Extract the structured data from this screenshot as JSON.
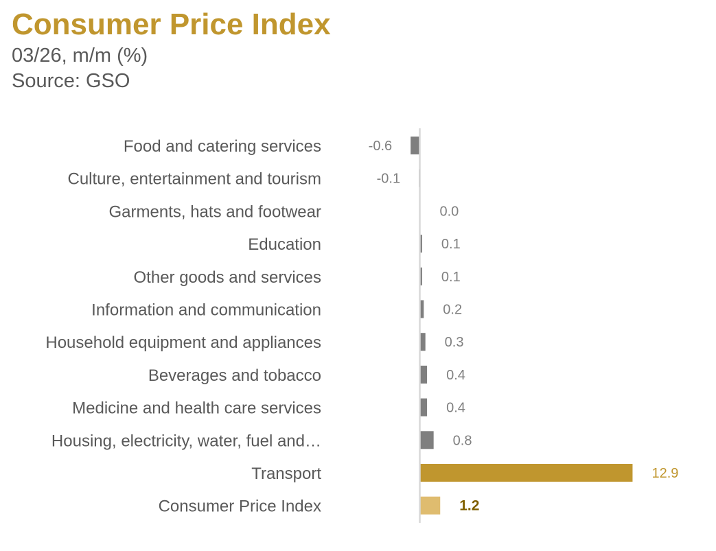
{
  "header": {
    "title": "Consumer Price Index",
    "subtitle": "03/26, m/m (%)",
    "source": "Source: GSO"
  },
  "colors": {
    "title": "#c0962e",
    "text": "#595959",
    "bar_default": "#7f7f7f",
    "bar_highlight": "#c0962e",
    "bar_total": "#dfbc6f",
    "label_highlight": "#c0962e",
    "label_total": "#7f5f00",
    "axis": "#d9d9d9"
  },
  "chart_data": {
    "type": "bar",
    "orientation": "horizontal",
    "title": "Consumer Price Index",
    "subtitle": "03/26, m/m (%)",
    "source": "Source: GSO",
    "xlabel": "",
    "ylabel": "",
    "grid": false,
    "legend": "none",
    "categories": [
      "Food and catering services",
      "Culture, entertainment and tourism",
      "Garments, hats and footwear",
      "Education",
      "Other goods and services",
      "Information and communication",
      "Household equipment and appliances",
      "Beverages and tobacco",
      "Medicine and health care services",
      "Housing, electricity, water, fuel and…",
      "Transport",
      "Consumer Price Index"
    ],
    "values": [
      -0.6,
      -0.1,
      0.0,
      0.1,
      0.1,
      0.2,
      0.3,
      0.4,
      0.4,
      0.8,
      12.9,
      1.2
    ],
    "value_labels": [
      "-0.6",
      "-0.1",
      "0.0",
      "0.1",
      "0.1",
      "0.2",
      "0.3",
      "0.4",
      "0.4",
      "0.8",
      "12.9",
      "1.2"
    ],
    "styles": [
      "default",
      "default",
      "default",
      "default",
      "default",
      "default",
      "default",
      "default",
      "default",
      "default",
      "highlight",
      "total"
    ]
  }
}
